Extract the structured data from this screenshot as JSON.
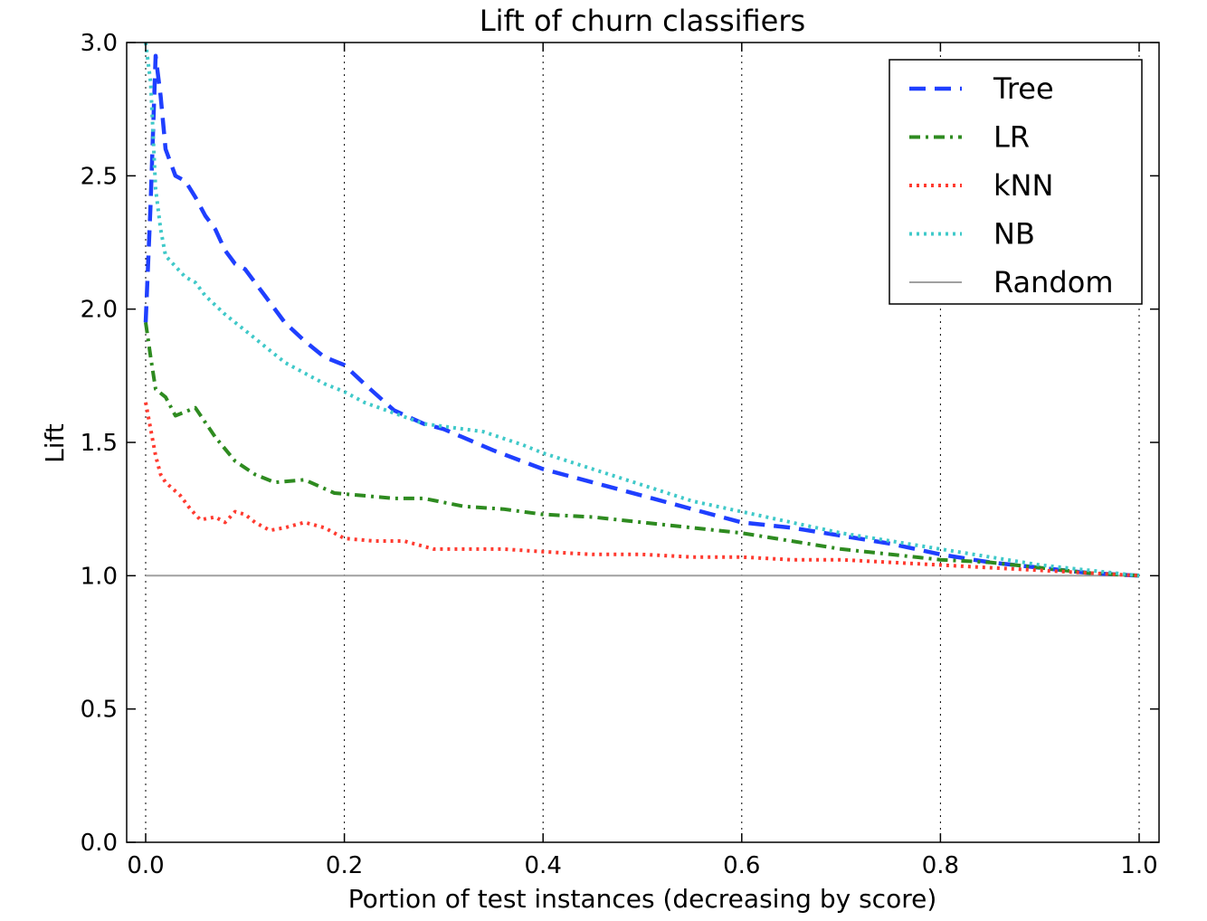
{
  "chart_data": {
    "type": "line",
    "title": "Lift of churn classifiers",
    "xlabel": "Portion of test instances (decreasing by score)",
    "ylabel": "Lift",
    "xlim": [
      0.0,
      1.0
    ],
    "ylim": [
      0.0,
      3.0
    ],
    "xticks": [
      "0.0",
      "0.2",
      "0.4",
      "0.6",
      "0.8",
      "1.0"
    ],
    "yticks": [
      "0.0",
      "0.5",
      "1.0",
      "1.5",
      "2.0",
      "2.5",
      "3.0"
    ],
    "grid": {
      "x": true,
      "y": false,
      "style": "dotted"
    },
    "legend_position": "top-right",
    "series": [
      {
        "name": "Tree",
        "color": "#1f3fff",
        "style": "dashed",
        "x": [
          0.0,
          0.005,
          0.01,
          0.015,
          0.02,
          0.03,
          0.04,
          0.05,
          0.06,
          0.07,
          0.08,
          0.09,
          0.1,
          0.12,
          0.14,
          0.16,
          0.18,
          0.2,
          0.22,
          0.25,
          0.28,
          0.3,
          0.35,
          0.4,
          0.45,
          0.5,
          0.55,
          0.6,
          0.65,
          0.7,
          0.75,
          0.8,
          0.85,
          0.9,
          0.95,
          1.0
        ],
        "y": [
          1.95,
          2.4,
          2.95,
          2.8,
          2.6,
          2.5,
          2.48,
          2.42,
          2.35,
          2.3,
          2.22,
          2.17,
          2.15,
          2.05,
          1.95,
          1.88,
          1.82,
          1.79,
          1.72,
          1.62,
          1.57,
          1.55,
          1.47,
          1.4,
          1.35,
          1.3,
          1.25,
          1.2,
          1.18,
          1.15,
          1.12,
          1.08,
          1.05,
          1.03,
          1.01,
          1.0
        ]
      },
      {
        "name": "LR",
        "color": "#2e8b20",
        "style": "dashdot",
        "x": [
          0.0,
          0.005,
          0.01,
          0.02,
          0.03,
          0.05,
          0.07,
          0.09,
          0.11,
          0.13,
          0.16,
          0.19,
          0.22,
          0.25,
          0.28,
          0.32,
          0.36,
          0.4,
          0.45,
          0.5,
          0.55,
          0.6,
          0.65,
          0.7,
          0.75,
          0.8,
          0.85,
          0.9,
          0.95,
          1.0
        ],
        "y": [
          1.95,
          1.82,
          1.7,
          1.67,
          1.6,
          1.63,
          1.52,
          1.43,
          1.38,
          1.35,
          1.36,
          1.31,
          1.3,
          1.29,
          1.29,
          1.26,
          1.25,
          1.23,
          1.22,
          1.2,
          1.18,
          1.16,
          1.13,
          1.1,
          1.08,
          1.06,
          1.05,
          1.03,
          1.01,
          1.0
        ]
      },
      {
        "name": "kNN",
        "color": "#ff3b30",
        "style": "dotted",
        "x": [
          0.0,
          0.005,
          0.01,
          0.015,
          0.02,
          0.035,
          0.045,
          0.055,
          0.07,
          0.08,
          0.09,
          0.1,
          0.11,
          0.125,
          0.14,
          0.16,
          0.18,
          0.2,
          0.23,
          0.26,
          0.29,
          0.32,
          0.36,
          0.4,
          0.45,
          0.5,
          0.55,
          0.6,
          0.65,
          0.7,
          0.75,
          0.8,
          0.85,
          0.9,
          0.95,
          1.0
        ],
        "y": [
          1.65,
          1.55,
          1.45,
          1.38,
          1.35,
          1.3,
          1.25,
          1.21,
          1.22,
          1.2,
          1.24,
          1.23,
          1.2,
          1.17,
          1.18,
          1.2,
          1.18,
          1.14,
          1.13,
          1.13,
          1.1,
          1.1,
          1.1,
          1.09,
          1.08,
          1.08,
          1.07,
          1.07,
          1.06,
          1.06,
          1.05,
          1.04,
          1.03,
          1.02,
          1.01,
          1.0
        ]
      },
      {
        "name": "NB",
        "color": "#3fc9c9",
        "style": "dotted",
        "x": [
          0.0,
          0.005,
          0.01,
          0.015,
          0.02,
          0.03,
          0.04,
          0.05,
          0.06,
          0.08,
          0.1,
          0.12,
          0.14,
          0.16,
          0.18,
          0.2,
          0.22,
          0.25,
          0.28,
          0.3,
          0.34,
          0.38,
          0.4,
          0.45,
          0.5,
          0.55,
          0.6,
          0.65,
          0.7,
          0.75,
          0.8,
          0.85,
          0.9,
          0.95,
          1.0
        ],
        "y": [
          3.0,
          2.85,
          2.45,
          2.3,
          2.2,
          2.16,
          2.12,
          2.1,
          2.05,
          1.98,
          1.92,
          1.86,
          1.8,
          1.76,
          1.72,
          1.69,
          1.65,
          1.61,
          1.57,
          1.56,
          1.54,
          1.49,
          1.46,
          1.4,
          1.34,
          1.28,
          1.24,
          1.2,
          1.16,
          1.13,
          1.1,
          1.07,
          1.04,
          1.02,
          1.0
        ]
      },
      {
        "name": "Random",
        "color": "#a0a0a0",
        "style": "solid",
        "x": [
          0.0,
          1.0
        ],
        "y": [
          1.0,
          1.0
        ]
      }
    ]
  }
}
